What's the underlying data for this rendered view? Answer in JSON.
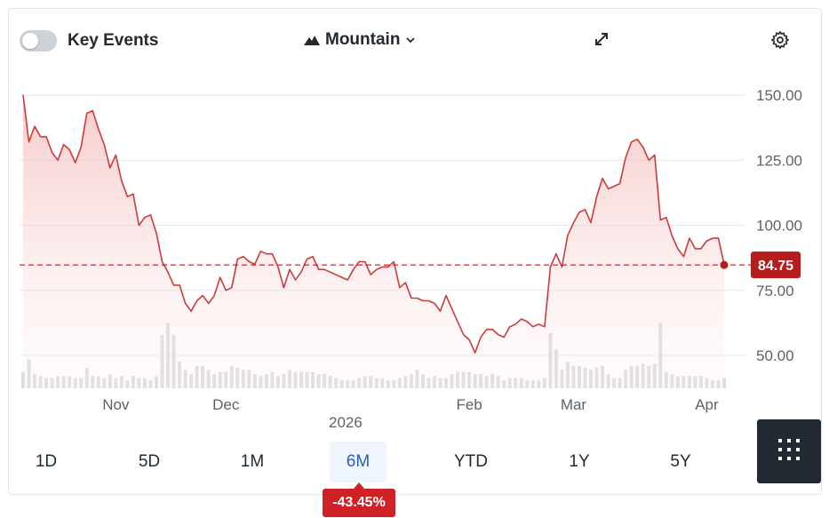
{
  "toolbar": {
    "key_events_label": "Key Events",
    "key_events_enabled": false,
    "chart_type_label": "Mountain",
    "chart_type_icon": "mountain-icon",
    "expand_icon": "expand-icon",
    "settings_icon": "gear-icon"
  },
  "time_axis": {
    "year_label": "2026"
  },
  "ranges": [
    {
      "label": "1D",
      "active": false
    },
    {
      "label": "5D",
      "active": false
    },
    {
      "label": "1M",
      "active": false
    },
    {
      "label": "6M",
      "active": true
    },
    {
      "label": "YTD",
      "active": false
    },
    {
      "label": "1Y",
      "active": false
    },
    {
      "label": "5Y",
      "active": false
    }
  ],
  "change_badge": "-43.45%",
  "colors": {
    "line": "#cf3a3a",
    "area": "#f6c9c9",
    "current_price": "#b71c1c",
    "change_badge": "#cf2227",
    "active_range": "#2a5fbf",
    "volume": "#dcdcdc"
  },
  "chart_data": {
    "type": "area",
    "title": "",
    "xlabel": "",
    "ylabel": "",
    "ylim": [
      38,
      158
    ],
    "y_ticks": [
      "150.00",
      "125.00",
      "100.00",
      "75.00",
      "50.00"
    ],
    "x_ticks": [
      "Nov",
      "Dec",
      "Feb",
      "Mar",
      "Apr"
    ],
    "current_price": "84.75",
    "grid": true,
    "series": [
      {
        "values": [
          150,
          132,
          138,
          134,
          134,
          128,
          125,
          131,
          129,
          124,
          130,
          143,
          144,
          137,
          131,
          122,
          127,
          117,
          111,
          112,
          100,
          103,
          104,
          97,
          86,
          82,
          77,
          77,
          70,
          67,
          71,
          73,
          70,
          73,
          80,
          75,
          76,
          87,
          88,
          86,
          85,
          90,
          89,
          89,
          84,
          76,
          83,
          79,
          82,
          87,
          88,
          83,
          83,
          82,
          81,
          80,
          79,
          83,
          86,
          86,
          81,
          83,
          84,
          84,
          86,
          76,
          78,
          72,
          72,
          71,
          71,
          70,
          67,
          73,
          68,
          63,
          58,
          56,
          51,
          57,
          60,
          60,
          58,
          57,
          61,
          62,
          64,
          63,
          61,
          62,
          61,
          84,
          89,
          84,
          96,
          101,
          105,
          106,
          101,
          111,
          118,
          114,
          115,
          116,
          126,
          132,
          133,
          130,
          125,
          127,
          102,
          103,
          96,
          91,
          88,
          95,
          91,
          91,
          94,
          95,
          95,
          85
        ]
      }
    ],
    "volume": [
      8,
      14,
      7,
      6,
      5,
      5,
      6,
      6,
      6,
      5,
      5,
      10,
      6,
      6,
      5,
      7,
      5,
      6,
      4,
      6,
      5,
      5,
      4,
      6,
      26,
      32,
      26,
      13,
      9,
      7,
      11,
      11,
      9,
      7,
      8,
      8,
      11,
      10,
      9,
      9,
      7,
      6,
      7,
      8,
      6,
      7,
      9,
      8,
      8,
      8,
      8,
      7,
      7,
      6,
      5,
      4,
      4,
      4,
      5,
      6,
      6,
      5,
      5,
      4,
      4,
      5,
      6,
      7,
      9,
      7,
      5,
      6,
      5,
      5,
      7,
      8,
      8,
      8,
      7,
      7,
      6,
      7,
      6,
      4,
      5,
      5,
      5,
      4,
      4,
      4,
      5,
      27,
      19,
      9,
      13,
      11,
      11,
      10,
      9,
      10,
      11,
      7,
      5,
      5,
      9,
      11,
      11,
      12,
      11,
      12,
      32,
      8,
      7,
      6,
      6,
      6,
      6,
      6,
      5,
      4,
      4,
      5
    ]
  }
}
